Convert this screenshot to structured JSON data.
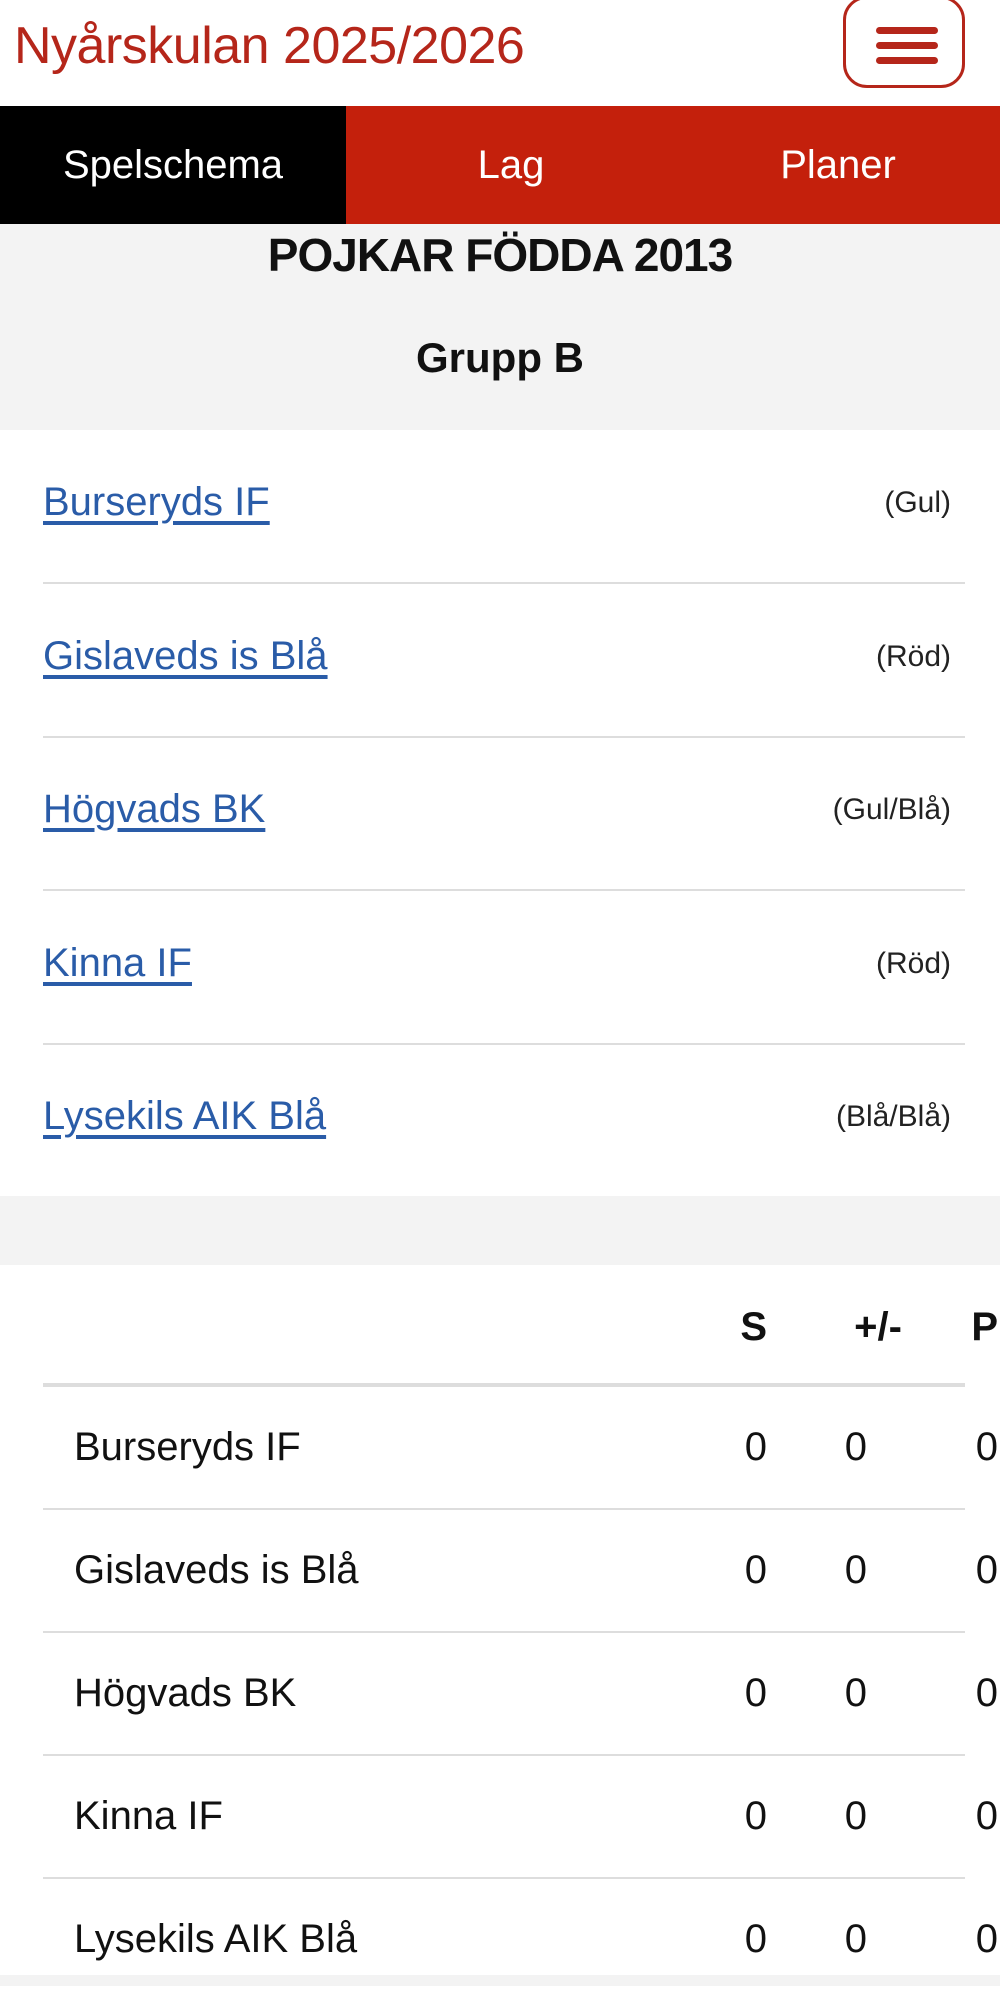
{
  "header": {
    "title": "Nyårskulan 2025/2026",
    "menu_icon": "hamburger-icon"
  },
  "nav": {
    "tabs": [
      {
        "label": "Spelschema",
        "active": true
      },
      {
        "label": "Lag"
      },
      {
        "label": "Planer"
      }
    ],
    "accent": "#c4200c"
  },
  "section": {
    "title": "POJKAR FÖDDA 2013",
    "group": "Grupp B"
  },
  "teams": [
    {
      "name": "Burseryds IF",
      "colors": "(Gul)"
    },
    {
      "name": "Gislaveds is Blå",
      "colors": "(Röd)"
    },
    {
      "name": "Högvads BK",
      "colors": "(Gul/Blå)"
    },
    {
      "name": "Kinna IF",
      "colors": "(Röd)"
    },
    {
      "name": "Lysekils AIK Blå",
      "colors": "(Blå/Blå)"
    }
  ],
  "standings": {
    "headers": [
      "S",
      "+/-",
      "P"
    ],
    "rows": [
      {
        "team": "Burseryds IF",
        "values": [
          "0",
          "0",
          "0"
        ]
      },
      {
        "team": "Gislaveds is Blå",
        "values": [
          "0",
          "0",
          "0"
        ]
      },
      {
        "team": "Högvads BK",
        "values": [
          "0",
          "0",
          "0"
        ]
      },
      {
        "team": "Kinna IF",
        "values": [
          "0",
          "0",
          "0"
        ]
      },
      {
        "team": "Lysekils AIK Blå",
        "values": [
          "0",
          "0",
          "0"
        ]
      }
    ]
  }
}
